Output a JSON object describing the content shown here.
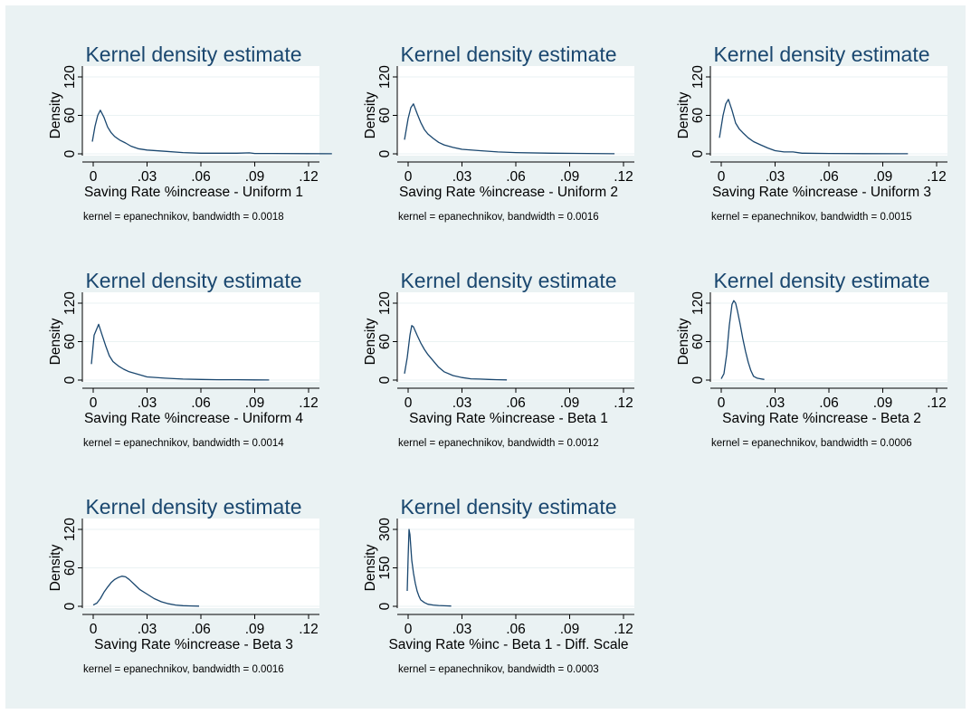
{
  "colors": {
    "outer_background": "#eaf2f3",
    "plot_background": "#ffffff",
    "line": "#1a476f",
    "title": "#1a476f",
    "grid": "#eaf2f3"
  },
  "chart_data": [
    {
      "type": "line",
      "title": "Kernel density estimate",
      "xlabel": "Saving Rate %increase - Uniform 1",
      "ylabel": "Density",
      "note": "kernel = epanechnikov, bandwidth = 0.0018",
      "xlim": [
        0,
        0.12
      ],
      "ylim": [
        0,
        120
      ],
      "xticks": [
        0,
        0.03,
        0.06,
        0.09,
        0.12
      ],
      "xtick_labels": [
        "0",
        ".03",
        ".06",
        ".09",
        ".12"
      ],
      "yticks": [
        0,
        60,
        120
      ],
      "ytick_labels": [
        "0",
        "60",
        "120"
      ],
      "grid": true,
      "series": [
        {
          "x": [
            -0.0005,
            0.001,
            0.0025,
            0.004,
            0.006,
            0.008,
            0.01,
            0.012,
            0.015,
            0.018,
            0.021,
            0.025,
            0.03,
            0.04,
            0.05,
            0.06,
            0.08,
            0.087,
            0.09,
            0.1,
            0.12,
            0.133
          ],
          "y": [
            19,
            43,
            60,
            68,
            57,
            42,
            33,
            27,
            21,
            17,
            12,
            8,
            6,
            4,
            2,
            1,
            1,
            1.5,
            0.5,
            0.5,
            0.3,
            0.2
          ]
        }
      ]
    },
    {
      "type": "line",
      "title": "Kernel density estimate",
      "xlabel": "Saving Rate %increase - Uniform 2",
      "ylabel": "Density",
      "note": "kernel = epanechnikov, bandwidth = 0.0016",
      "xlim": [
        0,
        0.12
      ],
      "ylim": [
        0,
        120
      ],
      "xticks": [
        0,
        0.03,
        0.06,
        0.09,
        0.12
      ],
      "xtick_labels": [
        "0",
        ".03",
        ".06",
        ".09",
        ".12"
      ],
      "yticks": [
        0,
        60,
        120
      ],
      "ytick_labels": [
        "0",
        "60",
        "120"
      ],
      "grid": true,
      "series": [
        {
          "x": [
            -0.002,
            0.0,
            0.0015,
            0.003,
            0.005,
            0.007,
            0.009,
            0.011,
            0.014,
            0.017,
            0.02,
            0.025,
            0.03,
            0.04,
            0.05,
            0.06,
            0.08,
            0.1,
            0.115
          ],
          "y": [
            22,
            55,
            72,
            78,
            63,
            49,
            38,
            31,
            24,
            18,
            14,
            10,
            7,
            5,
            3,
            2,
            1,
            0.5,
            0.2
          ]
        }
      ]
    },
    {
      "type": "line",
      "title": "Kernel density estimate",
      "xlabel": "Saving Rate %increase - Uniform 3",
      "ylabel": "Density",
      "note": "kernel = epanechnikov, bandwidth = 0.0015",
      "xlim": [
        0,
        0.12
      ],
      "ylim": [
        0,
        120
      ],
      "xticks": [
        0,
        0.03,
        0.06,
        0.09,
        0.12
      ],
      "xtick_labels": [
        "0",
        ".03",
        ".06",
        ".09",
        ".12"
      ],
      "yticks": [
        0,
        60,
        120
      ],
      "ytick_labels": [
        "0",
        "60",
        "120"
      ],
      "grid": true,
      "series": [
        {
          "x": [
            -0.001,
            0.001,
            0.0025,
            0.004,
            0.006,
            0.008,
            0.01,
            0.012,
            0.015,
            0.018,
            0.022,
            0.026,
            0.03,
            0.035,
            0.04,
            0.045,
            0.06,
            0.08,
            0.1,
            0.104
          ],
          "y": [
            25,
            60,
            78,
            85,
            68,
            48,
            39,
            33,
            25,
            19,
            14,
            9,
            5,
            3,
            3,
            1,
            0.5,
            0.3,
            0.2,
            0.1
          ]
        }
      ]
    },
    {
      "type": "line",
      "title": "Kernel density estimate",
      "xlabel": "Saving Rate %increase - Uniform 4",
      "ylabel": "Density",
      "note": "kernel = epanechnikov, bandwidth = 0.0014",
      "xlim": [
        0,
        0.12
      ],
      "ylim": [
        0,
        120
      ],
      "xticks": [
        0,
        0.03,
        0.06,
        0.09,
        0.12
      ],
      "xtick_labels": [
        "0",
        ".03",
        ".06",
        ".09",
        ".12"
      ],
      "yticks": [
        0,
        60,
        120
      ],
      "ytick_labels": [
        "0",
        "60",
        "120"
      ],
      "grid": true,
      "series": [
        {
          "x": [
            -0.001,
            0.0005,
            0.002,
            0.003,
            0.005,
            0.007,
            0.009,
            0.011,
            0.014,
            0.017,
            0.02,
            0.025,
            0.03,
            0.04,
            0.05,
            0.06,
            0.07,
            0.08,
            0.09,
            0.098
          ],
          "y": [
            25,
            70,
            80,
            87,
            70,
            53,
            38,
            29,
            22,
            17,
            13,
            9,
            5,
            3,
            1.5,
            1,
            0.5,
            0.5,
            0.3,
            0.2
          ]
        }
      ]
    },
    {
      "type": "line",
      "title": "Kernel density estimate",
      "xlabel": "Saving Rate %increase - Beta 1",
      "ylabel": "Density",
      "note": "kernel = epanechnikov, bandwidth = 0.0012",
      "xlim": [
        0,
        0.12
      ],
      "ylim": [
        0,
        120
      ],
      "xticks": [
        0,
        0.03,
        0.06,
        0.09,
        0.12
      ],
      "xtick_labels": [
        "0",
        ".03",
        ".06",
        ".09",
        ".12"
      ],
      "yticks": [
        0,
        60,
        120
      ],
      "ytick_labels": [
        "0",
        "60",
        "120"
      ],
      "grid": true,
      "series": [
        {
          "x": [
            -0.002,
            -0.0005,
            0.001,
            0.002,
            0.003,
            0.005,
            0.007,
            0.009,
            0.011,
            0.014,
            0.017,
            0.02,
            0.025,
            0.03,
            0.035,
            0.04,
            0.045,
            0.05,
            0.055
          ],
          "y": [
            10,
            35,
            70,
            85,
            83,
            70,
            58,
            48,
            40,
            30,
            20,
            13,
            7,
            4,
            2,
            1.5,
            1,
            0.5,
            0.3
          ]
        }
      ]
    },
    {
      "type": "line",
      "title": "Kernel density estimate",
      "xlabel": "Saving Rate %increase - Beta 2",
      "ylabel": "Density",
      "note": "kernel = epanechnikov, bandwidth = 0.0006",
      "xlim": [
        0,
        0.12
      ],
      "ylim": [
        0,
        120
      ],
      "xticks": [
        0,
        0.03,
        0.06,
        0.09,
        0.12
      ],
      "xtick_labels": [
        "0",
        ".03",
        ".06",
        ".09",
        ".12"
      ],
      "yticks": [
        0,
        60,
        120
      ],
      "ytick_labels": [
        "0",
        "60",
        "120"
      ],
      "grid": true,
      "series": [
        {
          "x": [
            0.0,
            0.0015,
            0.003,
            0.0045,
            0.006,
            0.007,
            0.008,
            0.009,
            0.0105,
            0.012,
            0.0135,
            0.015,
            0.0165,
            0.018,
            0.02,
            0.022,
            0.024
          ],
          "y": [
            2,
            10,
            40,
            85,
            118,
            124,
            120,
            108,
            88,
            65,
            45,
            28,
            15,
            6,
            3,
            2,
            1
          ]
        }
      ]
    },
    {
      "type": "line",
      "title": "Kernel density estimate",
      "xlabel": "Saving Rate %increase - Beta 3",
      "ylabel": "Density",
      "note": "kernel = epanechnikov, bandwidth = 0.0016",
      "xlim": [
        0,
        0.12
      ],
      "ylim": [
        0,
        120
      ],
      "xticks": [
        0,
        0.03,
        0.06,
        0.09,
        0.12
      ],
      "xtick_labels": [
        "0",
        ".03",
        ".06",
        ".09",
        ".12"
      ],
      "yticks": [
        0,
        60,
        120
      ],
      "ytick_labels": [
        "0",
        "60",
        "120"
      ],
      "grid": true,
      "series": [
        {
          "x": [
            0.0,
            0.002,
            0.004,
            0.006,
            0.008,
            0.01,
            0.012,
            0.014,
            0.016,
            0.018,
            0.02,
            0.023,
            0.026,
            0.03,
            0.034,
            0.038,
            0.042,
            0.046,
            0.05,
            0.055,
            0.059
          ],
          "y": [
            2,
            5,
            12,
            22,
            30,
            37,
            42,
            45,
            47,
            46,
            42,
            34,
            26,
            19,
            12,
            7,
            4,
            2,
            1,
            0.5,
            0.3
          ]
        }
      ]
    },
    {
      "type": "line",
      "title": "Kernel density estimate",
      "xlabel": "Saving Rate %inc - Beta 1 - Diff. Scale",
      "ylabel": "Density",
      "note": "kernel = epanechnikov, bandwidth = 0.0003",
      "xlim": [
        0,
        0.12
      ],
      "ylim": [
        0,
        300
      ],
      "xticks": [
        0,
        0.03,
        0.06,
        0.09,
        0.12
      ],
      "xtick_labels": [
        "0",
        ".03",
        ".06",
        ".09",
        ".12"
      ],
      "yticks": [
        0,
        150,
        300
      ],
      "ytick_labels": [
        "0",
        "150",
        "300"
      ],
      "grid": true,
      "series": [
        {
          "x": [
            -0.0005,
            0.0,
            0.0005,
            0.001,
            0.0015,
            0.002,
            0.003,
            0.004,
            0.005,
            0.006,
            0.007,
            0.009,
            0.011,
            0.014,
            0.017,
            0.02,
            0.024
          ],
          "y": [
            60,
            190,
            300,
            280,
            230,
            180,
            130,
            90,
            60,
            40,
            25,
            15,
            8,
            5,
            3,
            2,
            1
          ]
        }
      ]
    }
  ]
}
